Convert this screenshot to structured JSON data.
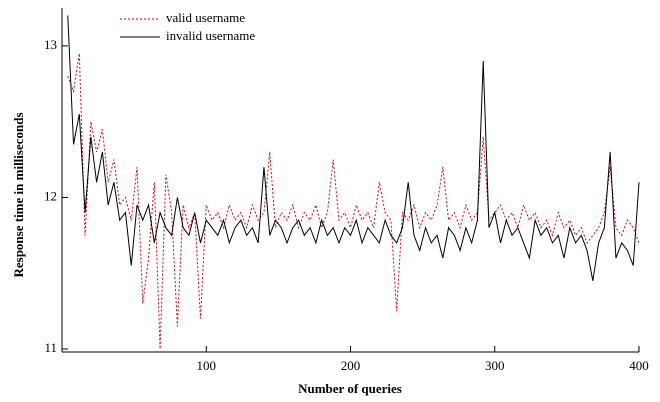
{
  "chart_data": {
    "type": "line",
    "x_label": "Number of queries",
    "y_label": "Response time in milliseconds",
    "x": [
      4,
      8,
      12,
      16,
      20,
      24,
      28,
      32,
      36,
      40,
      44,
      48,
      52,
      56,
      60,
      64,
      68,
      72,
      76,
      80,
      84,
      88,
      92,
      96,
      100,
      104,
      108,
      112,
      116,
      120,
      124,
      128,
      132,
      136,
      140,
      144,
      148,
      152,
      156,
      160,
      164,
      168,
      172,
      176,
      180,
      184,
      188,
      192,
      196,
      200,
      204,
      208,
      212,
      216,
      220,
      224,
      228,
      232,
      236,
      240,
      244,
      248,
      252,
      256,
      260,
      264,
      268,
      272,
      276,
      280,
      284,
      288,
      292,
      296,
      300,
      304,
      308,
      312,
      316,
      320,
      324,
      328,
      332,
      336,
      340,
      344,
      348,
      352,
      356,
      360,
      364,
      368,
      372,
      376,
      380,
      384,
      388,
      392,
      396,
      400
    ],
    "series": [
      {
        "name": "valid username",
        "color": "#e00000",
        "style": "dotted",
        "values": [
          12.8,
          12.7,
          12.95,
          11.75,
          12.5,
          12.3,
          12.45,
          12.1,
          12.25,
          11.95,
          12.0,
          11.85,
          12.2,
          11.3,
          11.6,
          12.1,
          11.0,
          12.15,
          11.9,
          11.15,
          11.95,
          11.8,
          11.9,
          11.2,
          11.95,
          11.85,
          11.9,
          11.8,
          11.95,
          11.85,
          11.9,
          11.8,
          11.95,
          11.85,
          11.9,
          12.3,
          11.8,
          11.9,
          11.85,
          11.95,
          11.8,
          11.9,
          11.85,
          11.95,
          11.8,
          11.9,
          12.25,
          11.85,
          11.9,
          11.8,
          11.95,
          11.85,
          11.9,
          11.8,
          12.1,
          11.9,
          11.85,
          11.25,
          11.9,
          11.85,
          11.95,
          11.8,
          11.9,
          11.85,
          11.95,
          12.2,
          11.85,
          11.9,
          11.8,
          11.95,
          11.85,
          11.9,
          12.4,
          11.85,
          11.9,
          11.95,
          11.85,
          11.9,
          11.8,
          11.95,
          11.85,
          11.9,
          11.8,
          11.85,
          11.75,
          11.9,
          11.8,
          11.85,
          11.75,
          11.8,
          11.7,
          11.75,
          11.8,
          11.9,
          12.2,
          11.8,
          11.75,
          11.85,
          11.8,
          11.7
        ]
      },
      {
        "name": "invalid username",
        "color": "#000000",
        "style": "solid",
        "values": [
          13.2,
          12.35,
          12.55,
          11.9,
          12.4,
          12.1,
          12.3,
          11.95,
          12.1,
          11.85,
          11.9,
          11.55,
          11.95,
          11.85,
          11.95,
          11.7,
          11.9,
          11.8,
          11.75,
          12.0,
          11.8,
          11.75,
          11.9,
          11.7,
          11.85,
          11.8,
          11.75,
          11.85,
          11.7,
          11.8,
          11.85,
          11.75,
          11.8,
          11.7,
          12.2,
          11.75,
          11.85,
          11.8,
          11.7,
          11.8,
          11.85,
          11.75,
          11.8,
          11.7,
          11.85,
          11.75,
          11.8,
          11.7,
          11.8,
          11.75,
          11.85,
          11.7,
          11.8,
          11.75,
          11.7,
          11.85,
          11.75,
          11.7,
          11.8,
          12.1,
          11.75,
          11.65,
          11.8,
          11.7,
          11.75,
          11.6,
          11.8,
          11.75,
          11.65,
          11.8,
          11.7,
          11.85,
          12.9,
          11.8,
          11.9,
          11.7,
          11.85,
          11.75,
          11.8,
          11.7,
          11.6,
          11.85,
          11.75,
          11.8,
          11.7,
          11.75,
          11.6,
          11.8,
          11.7,
          11.75,
          11.65,
          11.45,
          11.7,
          11.8,
          12.3,
          11.6,
          11.7,
          11.65,
          11.55,
          12.1
        ]
      }
    ],
    "xlim": [
      0,
      400
    ],
    "ylim": [
      10.98,
      13.25
    ],
    "xticks": [
      100,
      200,
      300,
      400
    ],
    "yticks": [
      11,
      12,
      13
    ],
    "grid": false,
    "legend": "upper left"
  }
}
